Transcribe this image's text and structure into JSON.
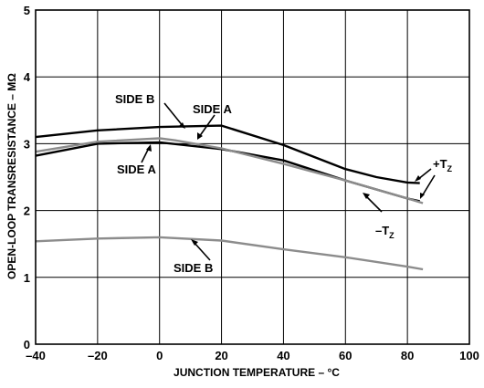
{
  "chart_data": {
    "type": "line",
    "xlabel": "JUNCTION TEMPERATURE – °C",
    "ylabel": "OPEN-LOOP TRANSRESISTANCE – MΩ",
    "xlim": [
      -40,
      100
    ],
    "ylim": [
      0,
      5
    ],
    "x_ticks": [
      -40,
      -20,
      0,
      20,
      40,
      60,
      80,
      100
    ],
    "x_tick_labels": [
      "–40",
      "–20",
      "0",
      "20",
      "40",
      "60",
      "80",
      "100"
    ],
    "y_ticks": [
      0,
      1,
      2,
      3,
      4,
      5
    ],
    "y_tick_labels": [
      "0",
      "1",
      "2",
      "3",
      "4",
      "5"
    ],
    "grid": true,
    "series": [
      {
        "color": "#000000",
        "x": [
          -40,
          -20,
          0,
          20,
          40,
          60,
          70,
          80,
          84
        ],
        "y": [
          3.1,
          3.2,
          3.25,
          3.27,
          2.98,
          2.62,
          2.5,
          2.42,
          2.41
        ]
      },
      {
        "color": "#000000",
        "x": [
          -40,
          -20,
          0,
          20,
          40,
          60,
          80,
          84
        ],
        "y": [
          2.82,
          3.0,
          3.02,
          2.92,
          2.75,
          2.45,
          2.18,
          2.14
        ]
      },
      {
        "color": "#8c8c8c",
        "x": [
          -40,
          -20,
          0,
          5,
          20,
          40,
          60,
          80,
          85
        ],
        "y": [
          2.88,
          3.03,
          3.08,
          3.05,
          2.93,
          2.7,
          2.45,
          2.18,
          2.11
        ]
      },
      {
        "color": "#8c8c8c",
        "x": [
          -40,
          -20,
          0,
          20,
          40,
          60,
          80,
          85
        ],
        "y": [
          1.54,
          1.58,
          1.6,
          1.55,
          1.42,
          1.3,
          1.16,
          1.12
        ]
      }
    ],
    "annotations": {
      "side_b_top": "SIDE B",
      "side_a_top": "SIDE A",
      "side_a_bottom": "SIDE A",
      "side_b_bottom": "SIDE B",
      "plus_tz_main": "+T",
      "plus_tz_sub": "Z",
      "minus_tz_main": "–T",
      "minus_tz_sub": "Z"
    }
  }
}
